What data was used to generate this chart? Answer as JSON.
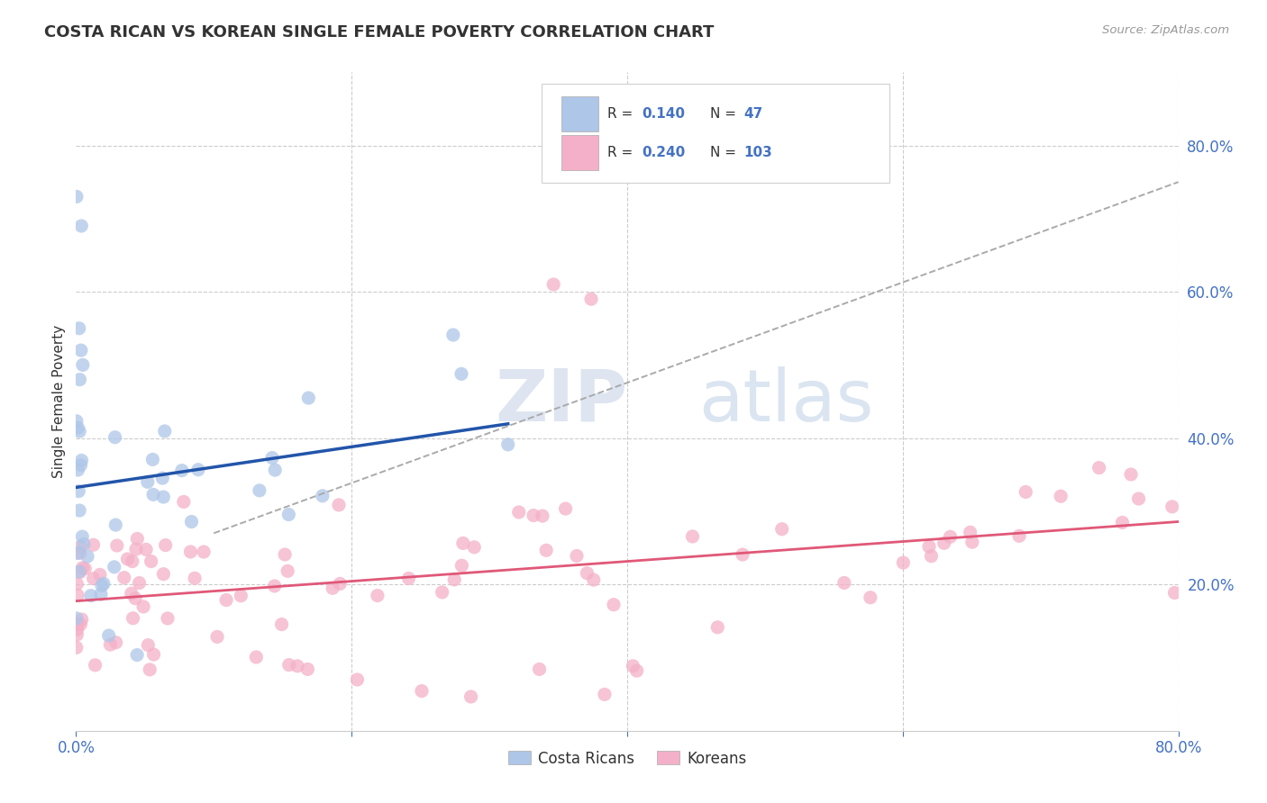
{
  "title": "COSTA RICAN VS KOREAN SINGLE FEMALE POVERTY CORRELATION CHART",
  "source": "Source: ZipAtlas.com",
  "ylabel": "Single Female Poverty",
  "xlim": [
    0.0,
    0.8
  ],
  "ylim": [
    0.0,
    0.9
  ],
  "grid_color": "#cccccc",
  "background_color": "#ffffff",
  "cr_color": "#aec6e8",
  "kr_color": "#f4b0c8",
  "cr_line_color": "#2255aa",
  "kr_line_color": "#e05878",
  "dash_line_color": "#aaaaaa",
  "point_alpha": 0.75,
  "point_size": 120,
  "cr_R": "0.140",
  "cr_N": "47",
  "kr_R": "0.240",
  "kr_N": "103",
  "legend_label_cr": "Costa Ricans",
  "legend_label_kr": "Koreans",
  "value_color": "#4472c4",
  "label_color": "#333333",
  "title_color": "#333333",
  "source_color": "#999999",
  "axis_tick_color": "#4472c4"
}
